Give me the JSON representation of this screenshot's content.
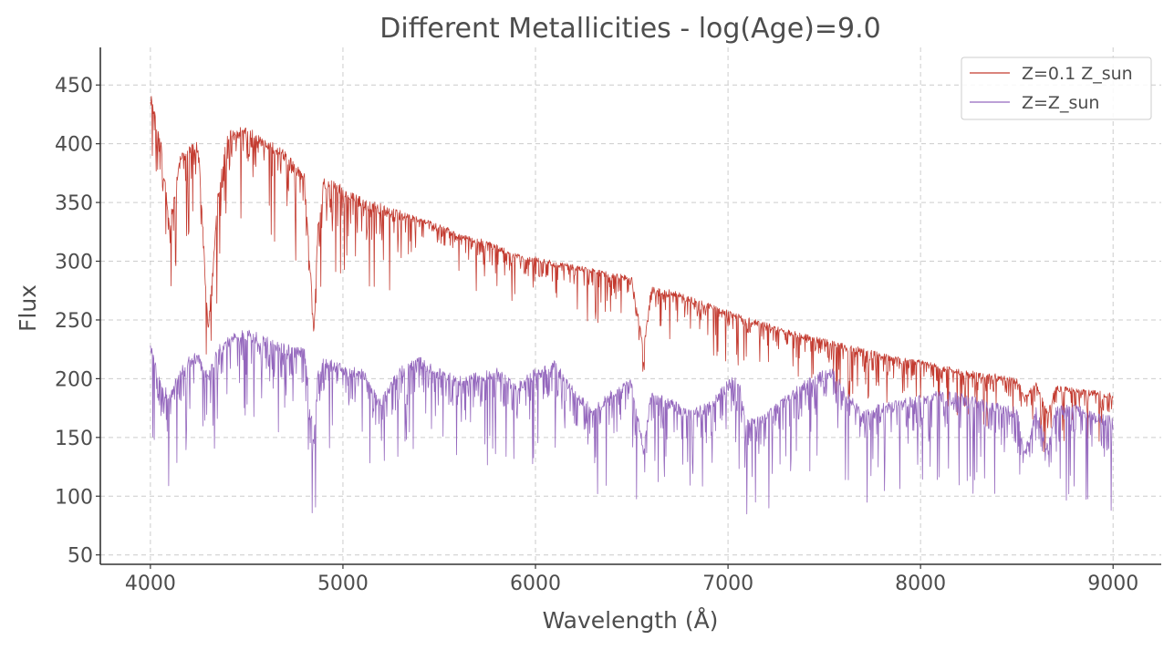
{
  "chart_data": {
    "type": "line",
    "title": "Different Metallicities - log(Age)=9.0",
    "xlabel": "Wavelength (Å)",
    "ylabel": "Flux",
    "xlim": [
      3740,
      9250
    ],
    "ylim": [
      42,
      482
    ],
    "xticks": [
      4000,
      5000,
      6000,
      7000,
      8000,
      9000
    ],
    "yticks": [
      50,
      100,
      150,
      200,
      250,
      300,
      350,
      400,
      450
    ],
    "grid": true,
    "legend_position": "top-right",
    "series": [
      {
        "name": "Z=0.1 Z_sun",
        "color": "#c33a2f",
        "x": [
          4000,
          4050,
          4100,
          4150,
          4200,
          4250,
          4300,
          4350,
          4400,
          4450,
          4500,
          4550,
          4600,
          4650,
          4700,
          4750,
          4800,
          4850,
          4870,
          4900,
          4950,
          5000,
          5100,
          5200,
          5300,
          5400,
          5500,
          5600,
          5700,
          5800,
          5900,
          6000,
          6100,
          6200,
          6300,
          6400,
          6500,
          6562,
          6600,
          6700,
          6800,
          6900,
          7000,
          7100,
          7200,
          7300,
          7400,
          7500,
          7600,
          7700,
          7800,
          7900,
          8000,
          8100,
          8200,
          8300,
          8400,
          8500,
          8542,
          8600,
          8662,
          8700,
          8800,
          8900,
          9000
        ],
        "y": [
          440,
          405,
          330,
          385,
          395,
          398,
          240,
          355,
          408,
          410,
          412,
          408,
          400,
          396,
          390,
          380,
          372,
          240,
          330,
          368,
          365,
          362,
          350,
          345,
          340,
          335,
          330,
          322,
          318,
          312,
          305,
          302,
          298,
          295,
          292,
          288,
          285,
          225,
          276,
          274,
          268,
          262,
          256,
          250,
          246,
          240,
          236,
          232,
          228,
          224,
          220,
          216,
          214,
          210,
          206,
          204,
          202,
          198,
          185,
          196,
          170,
          192,
          190,
          188,
          186
        ]
      },
      {
        "name": "Z=Z_sun",
        "color": "#9467bd",
        "x": [
          4000,
          4050,
          4100,
          4150,
          4200,
          4250,
          4300,
          4350,
          4400,
          4450,
          4500,
          4550,
          4600,
          4650,
          4700,
          4750,
          4800,
          4850,
          4870,
          4900,
          4950,
          5000,
          5100,
          5200,
          5300,
          5400,
          5500,
          5600,
          5700,
          5800,
          5900,
          6000,
          6100,
          6200,
          6300,
          6400,
          6500,
          6562,
          6600,
          6700,
          6800,
          6900,
          7000,
          7050,
          7100,
          7200,
          7300,
          7400,
          7500,
          7550,
          7600,
          7700,
          7800,
          7900,
          8000,
          8100,
          8200,
          8300,
          8400,
          8500,
          8542,
          8600,
          8662,
          8700,
          8800,
          8900,
          9000
        ],
        "y": [
          230,
          195,
          185,
          205,
          215,
          220,
          200,
          225,
          232,
          236,
          238,
          236,
          232,
          228,
          226,
          224,
          222,
          150,
          205,
          215,
          212,
          208,
          205,
          180,
          208,
          215,
          205,
          198,
          202,
          205,
          192,
          205,
          212,
          188,
          172,
          188,
          198,
          140,
          185,
          180,
          170,
          176,
          195,
          200,
          162,
          168,
          182,
          196,
          204,
          205,
          190,
          168,
          176,
          178,
          184,
          186,
          184,
          180,
          176,
          172,
          135,
          172,
          140,
          174,
          176,
          168,
          164
        ]
      }
    ]
  }
}
